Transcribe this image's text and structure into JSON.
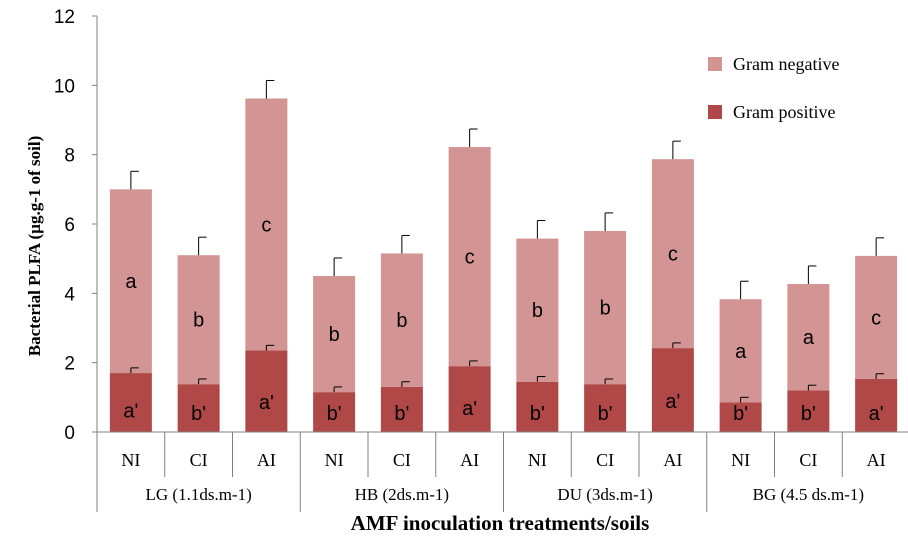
{
  "chart_data": {
    "type": "bar",
    "stacked": true,
    "xlabel": "AMF inoculation treatments/soils",
    "ylabel": "Bacterial PLFA (µg.g-1 of soil)",
    "ylim": [
      0,
      12
    ],
    "yticks": [
      0,
      2,
      4,
      6,
      8,
      10,
      12
    ],
    "grid": false,
    "legend_position": "right",
    "groups": [
      {
        "label": "LG (1.1ds.m-1)",
        "categories": [
          "NI",
          "CI",
          "AI"
        ]
      },
      {
        "label": "HB (2ds.m-1)",
        "categories": [
          "NI",
          "CI",
          "AI"
        ]
      },
      {
        "label": "DU (3ds.m-1)",
        "categories": [
          "NI",
          "CI",
          "AI"
        ]
      },
      {
        "label": "BG (4.5 ds.m-1)",
        "categories": [
          "NI",
          "CI",
          "AI"
        ]
      }
    ],
    "categories": [
      "NI",
      "CI",
      "AI",
      "NI",
      "CI",
      "AI",
      "NI",
      "CI",
      "AI",
      "NI",
      "CI",
      "AI"
    ],
    "series": [
      {
        "name": "Gram positive",
        "color": "#b04848",
        "values": [
          1.7,
          1.38,
          2.35,
          1.15,
          1.3,
          1.9,
          1.45,
          1.38,
          2.42,
          0.85,
          1.2,
          1.53
        ],
        "errors": [
          0.15,
          0.15,
          0.15,
          0.15,
          0.15,
          0.15,
          0.15,
          0.15,
          0.15,
          0.15,
          0.15,
          0.15
        ],
        "labels": [
          "a'",
          "b'",
          "a'",
          "b'",
          "b'",
          "a'",
          "b'",
          "b'",
          "a'",
          "b'",
          "b'",
          "a'"
        ]
      },
      {
        "name": "Gram negative",
        "color": "#d39494",
        "values": [
          5.3,
          3.72,
          7.27,
          3.35,
          3.85,
          6.32,
          4.13,
          4.42,
          5.45,
          2.98,
          3.07,
          3.55
        ],
        "errors": [
          0.52,
          0.52,
          0.52,
          0.52,
          0.52,
          0.52,
          0.52,
          0.52,
          0.52,
          0.52,
          0.52,
          0.52
        ],
        "labels": [
          "a",
          "b",
          "c",
          "b",
          "b",
          "c",
          "b",
          "b",
          "c",
          "a",
          "a",
          "c"
        ]
      }
    ],
    "legend": [
      "Gram negative",
      "Gram positive"
    ]
  }
}
